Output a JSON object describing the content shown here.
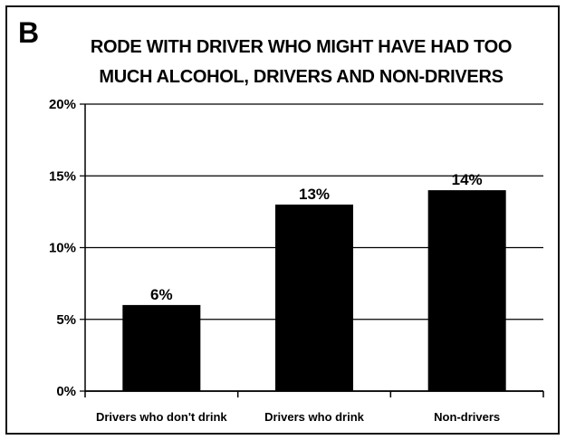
{
  "panel_letter": "B",
  "chart_data": {
    "type": "bar",
    "title_lines": [
      "RODE WITH DRIVER WHO MIGHT HAVE HAD TOO",
      "MUCH ALCOHOL, DRIVERS AND NON-DRIVERS"
    ],
    "categories": [
      "Drivers who don't drink",
      "Drivers who drink",
      "Non-drivers"
    ],
    "values": [
      6,
      13,
      14
    ],
    "data_labels": [
      "6%",
      "13%",
      "14%"
    ],
    "ylim": [
      0,
      20
    ],
    "yticks": [
      0,
      5,
      10,
      15,
      20
    ],
    "ytick_labels": [
      "0%",
      "5%",
      "10%",
      "15%",
      "20%"
    ],
    "xlabel": "",
    "ylabel": "",
    "grid": true,
    "bar_color": "#000000",
    "grid_color": "#000000"
  }
}
